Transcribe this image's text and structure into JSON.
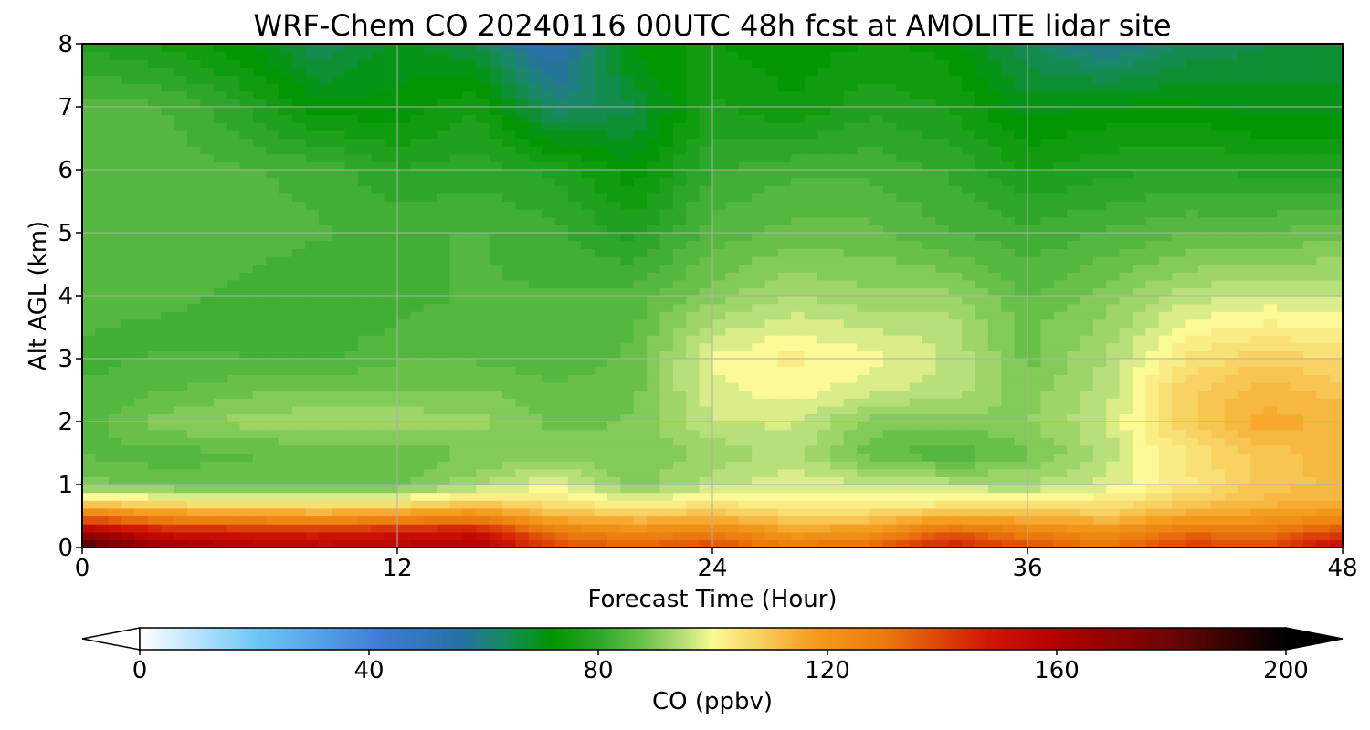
{
  "chart_data": {
    "type": "heatmap",
    "title": "WRF-Chem CO  20240116 00UTC 48h fcst at AMOLITE lidar site",
    "xlabel": "Forecast Time (Hour)",
    "ylabel": "Alt AGL (km)",
    "xlim": [
      0,
      48
    ],
    "ylim": [
      0,
      8
    ],
    "x_ticks": [
      0,
      12,
      24,
      36,
      48
    ],
    "y_ticks": [
      0,
      1,
      2,
      3,
      4,
      5,
      6,
      7,
      8
    ],
    "grid": true,
    "x": [
      0,
      3,
      6,
      9,
      12,
      15,
      18,
      21,
      24,
      27,
      30,
      33,
      36,
      39,
      42,
      45,
      48
    ],
    "y": [
      0,
      0.25,
      0.5,
      0.75,
      1,
      1.5,
      2,
      2.5,
      3,
      3.5,
      4,
      5,
      6,
      7,
      8
    ],
    "z": [
      [
        190,
        168,
        160,
        156,
        158,
        160,
        140,
        135,
        140,
        130,
        135,
        148,
        138,
        132,
        142,
        140,
        155
      ],
      [
        165,
        150,
        148,
        146,
        150,
        152,
        130,
        124,
        128,
        118,
        120,
        135,
        128,
        122,
        132,
        130,
        140
      ],
      [
        130,
        122,
        120,
        118,
        120,
        124,
        112,
        110,
        112,
        107,
        108,
        113,
        112,
        110,
        116,
        118,
        122
      ],
      [
        104,
        102,
        100,
        100,
        101,
        106,
        103,
        100,
        102,
        101,
        100,
        101,
        102,
        103,
        108,
        112,
        114
      ],
      [
        90,
        88,
        87,
        88,
        88,
        93,
        99,
        90,
        95,
        98,
        97,
        95,
        94,
        97,
        103,
        110,
        112
      ],
      [
        86,
        85,
        86,
        87,
        87,
        89,
        90,
        89,
        92,
        95,
        87,
        84,
        88,
        95,
        104,
        110,
        113
      ],
      [
        85,
        90,
        92,
        93,
        93,
        92,
        88,
        89,
        96,
        97,
        90,
        90,
        91,
        96,
        108,
        115,
        113
      ],
      [
        84,
        86,
        88,
        89,
        89,
        89,
        87,
        88,
        98,
        100,
        97,
        95,
        90,
        95,
        108,
        113,
        110
      ],
      [
        83,
        84,
        84,
        83,
        86,
        86,
        84,
        87,
        99,
        102,
        100,
        96,
        88,
        94,
        104,
        108,
        106
      ],
      [
        84,
        83,
        82,
        82,
        84,
        85,
        84,
        86,
        95,
        98,
        96,
        95,
        88,
        92,
        100,
        102,
        101
      ],
      [
        85,
        85,
        83,
        82,
        83,
        84,
        84,
        85,
        90,
        94,
        92,
        92,
        86,
        90,
        95,
        97,
        96
      ],
      [
        86,
        86,
        85,
        84,
        83,
        84,
        82,
        78,
        85,
        87,
        87,
        84,
        82,
        84,
        86,
        86,
        88
      ],
      [
        85,
        86,
        84,
        83,
        79,
        80,
        78,
        72,
        81,
        83,
        83,
        81,
        76,
        78,
        79,
        78,
        78
      ],
      [
        85,
        84,
        79,
        72,
        72,
        76,
        62,
        66,
        77,
        74,
        78,
        76,
        70,
        72,
        72,
        70,
        70
      ],
      [
        78,
        76,
        72,
        64,
        70,
        66,
        52,
        73,
        74,
        72,
        74,
        73,
        64,
        58,
        64,
        66,
        66
      ]
    ],
    "colorbar": {
      "label": "CO  (ppbv)",
      "min": 0,
      "max": 200,
      "ticks": [
        0,
        40,
        80,
        120,
        160,
        200
      ],
      "extend": "both",
      "stops": [
        {
          "v": 0,
          "c": "#ffffff"
        },
        {
          "v": 20,
          "c": "#6fc8f6"
        },
        {
          "v": 42,
          "c": "#3f7cd6"
        },
        {
          "v": 56,
          "c": "#2870a6"
        },
        {
          "v": 64,
          "c": "#168c5a"
        },
        {
          "v": 72,
          "c": "#009600"
        },
        {
          "v": 80,
          "c": "#2ea62a"
        },
        {
          "v": 88,
          "c": "#6cc24a"
        },
        {
          "v": 95,
          "c": "#b8e07a"
        },
        {
          "v": 100,
          "c": "#fbfa96"
        },
        {
          "v": 108,
          "c": "#f8d060"
        },
        {
          "v": 118,
          "c": "#f59a1c"
        },
        {
          "v": 130,
          "c": "#ea7a0c"
        },
        {
          "v": 148,
          "c": "#d21606"
        },
        {
          "v": 160,
          "c": "#b40000"
        },
        {
          "v": 180,
          "c": "#6a0606"
        },
        {
          "v": 200,
          "c": "#000000"
        }
      ]
    }
  }
}
